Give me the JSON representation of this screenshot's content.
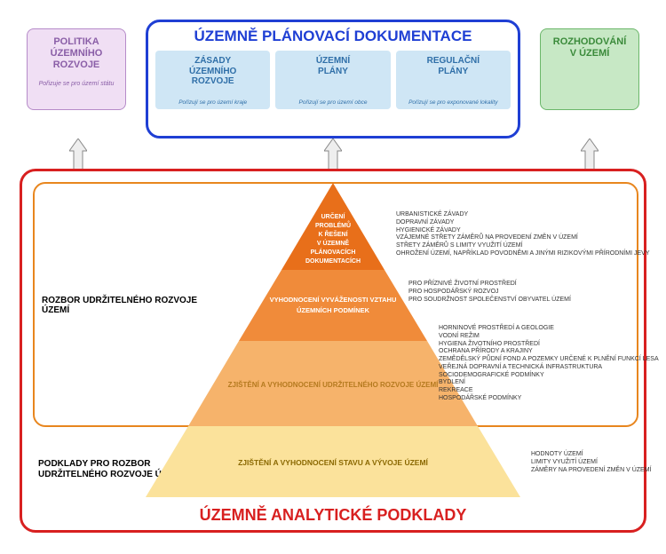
{
  "top": {
    "left": {
      "title_l1": "POLITIKA",
      "title_l2": "ÚZEMNÍHO",
      "title_l3": "ROZVOJE",
      "sub": "Pořizuje se pro území státu",
      "bg": "#f0dff4",
      "border": "#b68bc9",
      "text_color": "#8a5ea7"
    },
    "right": {
      "title_l1": "ROZHODOVÁNÍ",
      "title_l2": "V ÚZEMÍ",
      "bg": "#c7e8c5",
      "border": "#6bb76a",
      "text_color": "#3a8a3a"
    },
    "center": {
      "title": "ÚZEMNĚ PLÁNOVACÍ DOKUMENTACE",
      "border": "#1f3fd4",
      "text_color": "#1f3fd4",
      "col_bg": "#cfe6f5",
      "col_text": "#2f6fa8",
      "cols": [
        {
          "t1": "ZÁSADY",
          "t2": "ÚZEMNÍHO",
          "t3": "ROZVOJE",
          "sub": "Pořizují se pro území kraje"
        },
        {
          "t1": "ÚZEMNÍ",
          "t2": "PLÁNY",
          "t3": "",
          "sub": "Pořizují se pro území obce"
        },
        {
          "t1": "REGULAČNÍ",
          "t2": "PLÁNY",
          "t3": "",
          "sub": "Pořizují se pro exponované lokality"
        }
      ]
    }
  },
  "arrows": {
    "fill": "#eeeeee",
    "stroke": "#888888"
  },
  "main": {
    "border": "#d82020",
    "title": "ÚZEMNĚ ANALYTICKÉ PODKLADY",
    "title_color": "#d82020"
  },
  "orange_box": {
    "border": "#e8861e",
    "label": "ROZBOR UDRŽITELNÉHO ROZVOJE ÚZEMÍ"
  },
  "yellow_box": {
    "label_l1": "PODKLADY PRO ROZBOR",
    "label_l2": "UDRŽITELNÉHO ROZVOJE ÚZEMÍ"
  },
  "pyramid": {
    "tiers": [
      {
        "fill": "#e86f1a",
        "label_lines": [
          "URČENÍ",
          "PROBLÉMŮ",
          "K ŘEŠENÍ",
          "V ÚZEMNĚ",
          "PLÁNOVACÍCH",
          "DOKUMENTACÍCH"
        ]
      },
      {
        "fill": "#f08b3a",
        "label_lines": [
          "VYHODNOCENÍ VYVÁŽENOSTI VZTAHU",
          "ÚZEMNÍCH PODMÍNEK"
        ]
      },
      {
        "fill": "#f6b36b",
        "label_lines": [
          "ZJIŠTĚNÍ A VYHODNOCENÍ UDRŽITELNÉHO ROZVOJE ÚZEMÍ"
        ]
      },
      {
        "fill": "#fbe29b",
        "label_lines": [
          "ZJIŠTĚNÍ A VYHODNOCENÍ STAVU A VÝVOJE ÚZEMÍ"
        ]
      }
    ]
  },
  "bullets": {
    "tier1": [
      "URBANISTICKÉ ZÁVADY",
      "DOPRAVNÍ ZÁVADY",
      "HYGIENICKÉ ZÁVADY",
      "VZÁJEMNÉ STŘETY ZÁMĚRŮ NA PROVEDENÍ ZMĚN V ÚZEMÍ",
      "STŘETY ZÁMĚRŮ S LIMITY VYUŽITÍ ÚZEMÍ",
      "OHROŽENÍ ÚZEMÍ, NAPŘÍKLAD POVODNĚMI A JINÝMI RIZIKOVÝMI PŘÍRODNÍMI JEVY"
    ],
    "tier2": [
      "PRO PŘÍZNIVÉ ŽIVOTNÍ PROSTŘEDÍ",
      "PRO HOSPODÁŘSKÝ ROZVOJ",
      "PRO SOUDRŽNOST SPOLEČENSTVÍ OBYVATEL ÚZEMÍ"
    ],
    "tier3": [
      "HORNINOVÉ PROSTŘEDÍ A GEOLOGIE",
      "VODNÍ REŽIM",
      "HYGIENA ŽIVOTNÍHO PROSTŘEDÍ",
      "OCHRANA PŘÍRODY A KRAJINY",
      "ZEMĚDĚLSKÝ PŮDNÍ FOND A POZEMKY URČENÉ K PLNĚNÍ FUNKCÍ LESA",
      "VEŘEJNÁ DOPRAVNÍ A TECHNICKÁ INFRASTRUKTURA",
      "SOCIODEMOGRAFICKÉ PODMÍNKY",
      "BYDLENÍ",
      "REKREACE",
      "HOSPODÁŘSKÉ PODMÍNKY"
    ],
    "tier4": [
      "HODNOTY ÚZEMÍ",
      "LIMITY VYUŽITÍ ÚZEMÍ",
      "ZÁMĚRY NA PROVEDENÍ ZMĚN V ÚZEMÍ"
    ]
  }
}
